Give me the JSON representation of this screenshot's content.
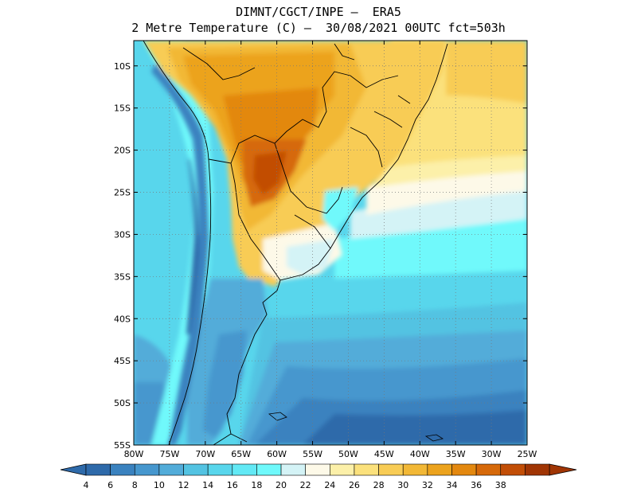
{
  "title": {
    "line1": "DIMNT/CGCT/INPE –  ERA5",
    "line2": "2 Metre Temperature (C) –  30/08/2021 00UTC fct=503h"
  },
  "map": {
    "lon_range": [
      -80,
      -25
    ],
    "lat_range": [
      -55,
      -7
    ],
    "lon_ticks": [
      {
        "value": -80,
        "label": "80W"
      },
      {
        "value": -75,
        "label": "75W"
      },
      {
        "value": -70,
        "label": "70W"
      },
      {
        "value": -65,
        "label": "65W"
      },
      {
        "value": -60,
        "label": "60W"
      },
      {
        "value": -55,
        "label": "55W"
      },
      {
        "value": -50,
        "label": "50W"
      },
      {
        "value": -45,
        "label": "45W"
      },
      {
        "value": -40,
        "label": "40W"
      },
      {
        "value": -35,
        "label": "35W"
      },
      {
        "value": -30,
        "label": "30W"
      },
      {
        "value": -25,
        "label": "25W"
      }
    ],
    "lat_ticks": [
      {
        "value": -10,
        "label": "10S"
      },
      {
        "value": -15,
        "label": "15S"
      },
      {
        "value": -20,
        "label": "20S"
      },
      {
        "value": -25,
        "label": "25S"
      },
      {
        "value": -30,
        "label": "30S"
      },
      {
        "value": -35,
        "label": "35S"
      },
      {
        "value": -40,
        "label": "40S"
      },
      {
        "value": -45,
        "label": "45S"
      },
      {
        "value": -50,
        "label": "50S"
      },
      {
        "value": -55,
        "label": "55S"
      }
    ]
  },
  "colorbar": {
    "labels": [
      "4",
      "6",
      "8",
      "10",
      "12",
      "14",
      "16",
      "18",
      "20",
      "22",
      "24",
      "26",
      "28",
      "30",
      "32",
      "34",
      "36",
      "38"
    ],
    "colors": [
      "#2e6aaa",
      "#3a82bf",
      "#4697ce",
      "#52acd9",
      "#53c3e2",
      "#58d6ec",
      "#62e9f5",
      "#6ff9fb",
      "#d4f3f6",
      "#fdf9e8",
      "#fcf0a9",
      "#fbe17c",
      "#f8cc55",
      "#f2b836",
      "#eca31d",
      "#e3880f",
      "#d6690a",
      "#c24e06",
      "#a03504"
    ],
    "under_color": "#2e6aaa",
    "over_color": "#a03504"
  }
}
